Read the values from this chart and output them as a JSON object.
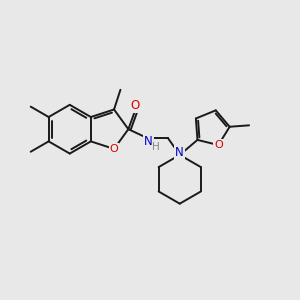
{
  "bg_color": "#e8e8e8",
  "bond_color": "#1a1a1a",
  "bond_width": 1.4,
  "atom_colors": {
    "O": "#dd0000",
    "N": "#0000cc",
    "H": "#888888"
  },
  "font_size": 8.5
}
